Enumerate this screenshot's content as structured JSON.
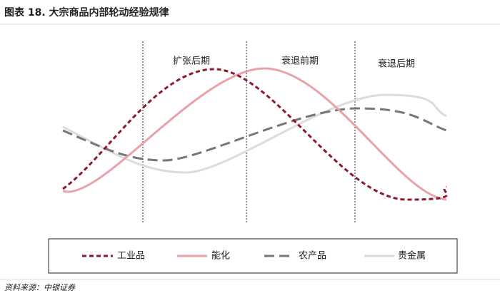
{
  "title": "图表 18. 大宗商品内部轮动经验规律",
  "phases": [
    "扩张后期",
    "衰退前期",
    "衰退后期"
  ],
  "legend": [
    "工业品",
    "能化",
    "农产品",
    "贵金属"
  ],
  "source": "资料来源：中银证券"
}
